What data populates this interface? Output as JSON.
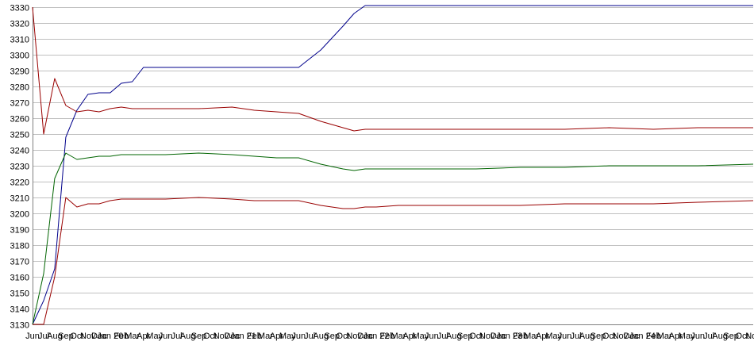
{
  "chart_data": {
    "type": "line",
    "title": "",
    "xlabel": "",
    "ylabel": "",
    "ylim": [
      3130,
      3330
    ],
    "yticks": [
      3130,
      3140,
      3150,
      3160,
      3170,
      3180,
      3190,
      3200,
      3210,
      3220,
      3230,
      3240,
      3250,
      3260,
      3270,
      3280,
      3290,
      3300,
      3310,
      3320,
      3330
    ],
    "grid": true,
    "legend": "none",
    "x_tick_labels": [
      "Jun",
      "Jul",
      "Aug",
      "Sep",
      "Oct",
      "Nov",
      "Dec",
      "Jan 20",
      "Feb",
      "Mar",
      "Apr",
      "May",
      "Jun",
      "Jul",
      "Aug",
      "Sep",
      "Oct",
      "Nov",
      "Dec",
      "Jan 21",
      "Feb",
      "Mar",
      "Apr",
      "May",
      "Jun",
      "Jul",
      "Aug",
      "Sep",
      "Oct",
      "Nov",
      "Dec",
      "Jan 22",
      "Feb",
      "Mar",
      "Apr",
      "May",
      "Jun",
      "Jul",
      "Aug",
      "Sep",
      "Oct",
      "Nov",
      "Dec",
      "Jan 23",
      "Feb",
      "Mar",
      "Apr",
      "May",
      "Jun",
      "Jul",
      "Aug",
      "Sep",
      "Oct",
      "Nov",
      "Dec",
      "Jan 24",
      "Feb",
      "Mar",
      "Apr",
      "May",
      "Jun",
      "Jul",
      "Aug",
      "Sep",
      "Oct",
      "Nov"
    ],
    "x": [
      0,
      1,
      2,
      3,
      4,
      5,
      6,
      7,
      8,
      9,
      10,
      12,
      15,
      18,
      20,
      22,
      24,
      26,
      28,
      29,
      30,
      31,
      33,
      36,
      40,
      44,
      48,
      52,
      56,
      60,
      65
    ],
    "series": [
      {
        "color": "#00008b",
        "values": [
          3130,
          3145,
          3165,
          3248,
          3265,
          3275,
          3276,
          3276,
          3282,
          3283,
          3292,
          3292,
          3292,
          3292,
          3292,
          3292,
          3292,
          3303,
          3318,
          3326,
          3331,
          3331,
          3331,
          3331,
          3331,
          3331,
          3331,
          3331,
          3331,
          3331,
          3331
        ]
      },
      {
        "color": "#990000",
        "values": [
          3330,
          3250,
          3285,
          3268,
          3264,
          3265,
          3264,
          3266,
          3267,
          3266,
          3266,
          3266,
          3266,
          3267,
          3265,
          3264,
          3263,
          3258,
          3254,
          3252,
          3253,
          3253,
          3253,
          3253,
          3253,
          3253,
          3253,
          3254,
          3253,
          3254,
          3254
        ]
      },
      {
        "color": "#006400",
        "values": [
          3130,
          3162,
          3222,
          3238,
          3234,
          3235,
          3236,
          3236,
          3237,
          3237,
          3237,
          3237,
          3238,
          3237,
          3236,
          3235,
          3235,
          3231,
          3228,
          3227,
          3228,
          3228,
          3228,
          3228,
          3228,
          3229,
          3229,
          3230,
          3230,
          3230,
          3231
        ]
      },
      {
        "color": "#990000",
        "values": [
          3130,
          3130,
          3160,
          3210,
          3204,
          3206,
          3206,
          3208,
          3209,
          3209,
          3209,
          3209,
          3210,
          3209,
          3208,
          3208,
          3208,
          3205,
          3203,
          3203,
          3204,
          3204,
          3205,
          3205,
          3205,
          3205,
          3206,
          3206,
          3206,
          3207,
          3208
        ]
      }
    ]
  }
}
